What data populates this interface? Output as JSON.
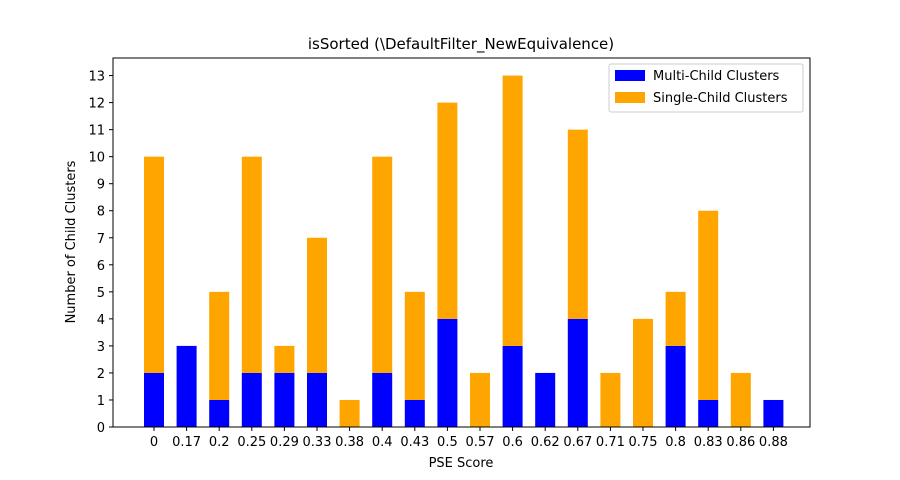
{
  "chart_data": {
    "type": "bar",
    "stacked": true,
    "title": "isSorted (\\DefaultFilter_NewEquivalence)",
    "xlabel": "PSE Score",
    "ylabel": "Number of Child Clusters",
    "categories": [
      "0",
      "0.17",
      "0.2",
      "0.25",
      "0.29",
      "0.33",
      "0.38",
      "0.4",
      "0.43",
      "0.5",
      "0.57",
      "0.6",
      "0.62",
      "0.67",
      "0.71",
      "0.75",
      "0.8",
      "0.83",
      "0.86",
      "0.88"
    ],
    "series": [
      {
        "name": "Multi-Child Clusters",
        "color": "#0000ff",
        "values": [
          2,
          3,
          1,
          2,
          2,
          2,
          0,
          2,
          1,
          4,
          0,
          3,
          2,
          4,
          0,
          0,
          3,
          1,
          0,
          1
        ]
      },
      {
        "name": "Single-Child Clusters",
        "color": "#ffa500",
        "values": [
          8,
          0,
          4,
          8,
          1,
          5,
          1,
          8,
          4,
          8,
          2,
          10,
          0,
          7,
          2,
          4,
          2,
          7,
          2,
          0
        ]
      }
    ],
    "yticks": [
      0,
      1,
      2,
      3,
      4,
      5,
      6,
      7,
      8,
      9,
      10,
      11,
      12,
      13
    ],
    "ylim": [
      0,
      13.65
    ],
    "grid": false,
    "legend_position": "top-right"
  }
}
